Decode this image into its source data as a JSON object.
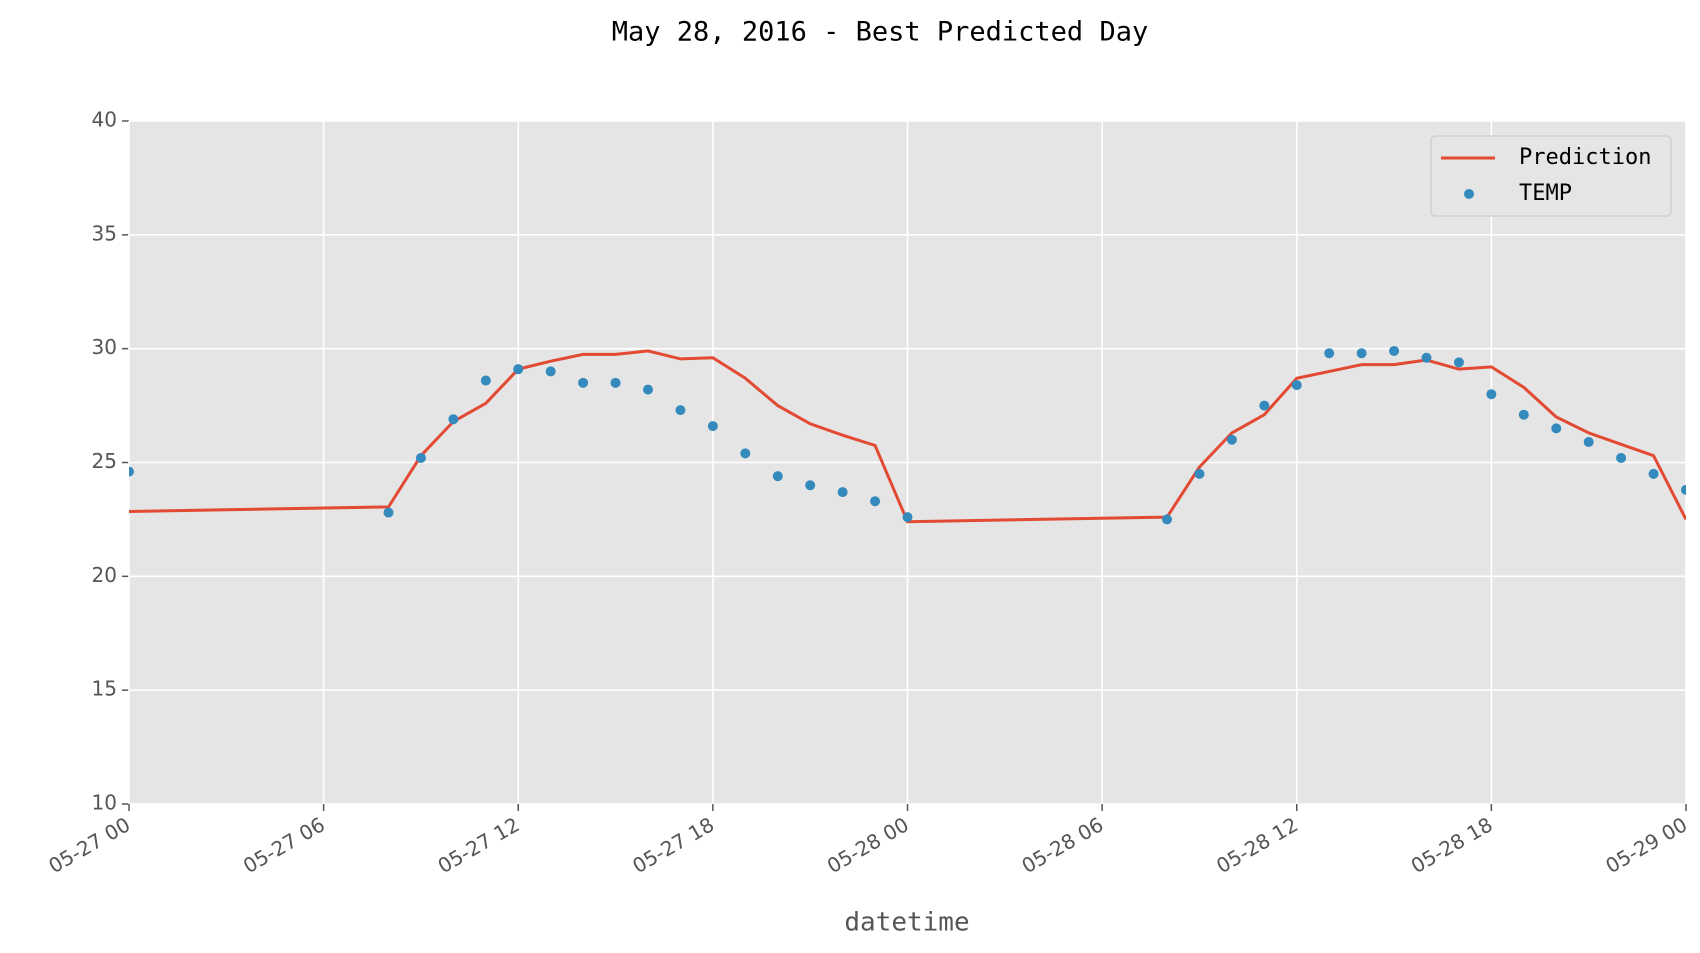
{
  "chart_data": {
    "type": "line",
    "title": "May 28, 2016 - Best Predicted Day",
    "xlabel": "datetime",
    "x": [
      "05-27 00",
      "05-27 08",
      "05-27 09",
      "05-27 10",
      "05-27 11",
      "05-27 12",
      "05-27 13",
      "05-27 14",
      "05-27 15",
      "05-27 16",
      "05-27 17",
      "05-27 18",
      "05-27 19",
      "05-27 20",
      "05-27 21",
      "05-27 22",
      "05-27 23",
      "05-28 00",
      "05-28 08",
      "05-28 09",
      "05-28 10",
      "05-28 11",
      "05-28 12",
      "05-28 13",
      "05-28 14",
      "05-28 15",
      "05-28 16",
      "05-28 17",
      "05-28 18",
      "05-28 19",
      "05-28 20",
      "05-28 21",
      "05-28 22",
      "05-28 23",
      "05-29 00"
    ],
    "series": [
      {
        "name": "Prediction",
        "kind": "line",
        "color": "#e24a33",
        "values": [
          22.85,
          23.05,
          25.3,
          26.8,
          27.6,
          29.1,
          29.45,
          29.75,
          29.75,
          29.9,
          29.55,
          29.6,
          28.7,
          27.5,
          26.7,
          26.2,
          25.75,
          22.4,
          22.6,
          24.8,
          26.3,
          27.1,
          28.7,
          29.0,
          29.3,
          29.3,
          29.5,
          29.1,
          29.2,
          28.3,
          27.0,
          26.3,
          25.8,
          25.3,
          22.5
        ]
      },
      {
        "name": "TEMP",
        "kind": "points",
        "color": "#348abd",
        "values": [
          24.6,
          22.8,
          25.2,
          26.9,
          28.6,
          29.1,
          29.0,
          28.5,
          28.5,
          28.2,
          27.3,
          26.6,
          25.4,
          24.4,
          24.0,
          23.7,
          23.3,
          22.6,
          22.5,
          24.5,
          26.0,
          27.5,
          28.4,
          29.8,
          29.8,
          29.9,
          29.6,
          29.4,
          28.0,
          27.1,
          26.5,
          25.9,
          25.2,
          24.5,
          23.8
        ]
      }
    ],
    "xlim": [
      "05-27 00",
      "05-29 00"
    ],
    "xticks": [
      "05-27 00",
      "05-27 06",
      "05-27 12",
      "05-27 18",
      "05-28 00",
      "05-28 06",
      "05-28 12",
      "05-28 18",
      "05-29 00"
    ],
    "ylim": [
      10,
      40
    ],
    "yticks": [
      10,
      15,
      20,
      25,
      30,
      35,
      40
    ],
    "grid": true,
    "legend": "upper right"
  }
}
